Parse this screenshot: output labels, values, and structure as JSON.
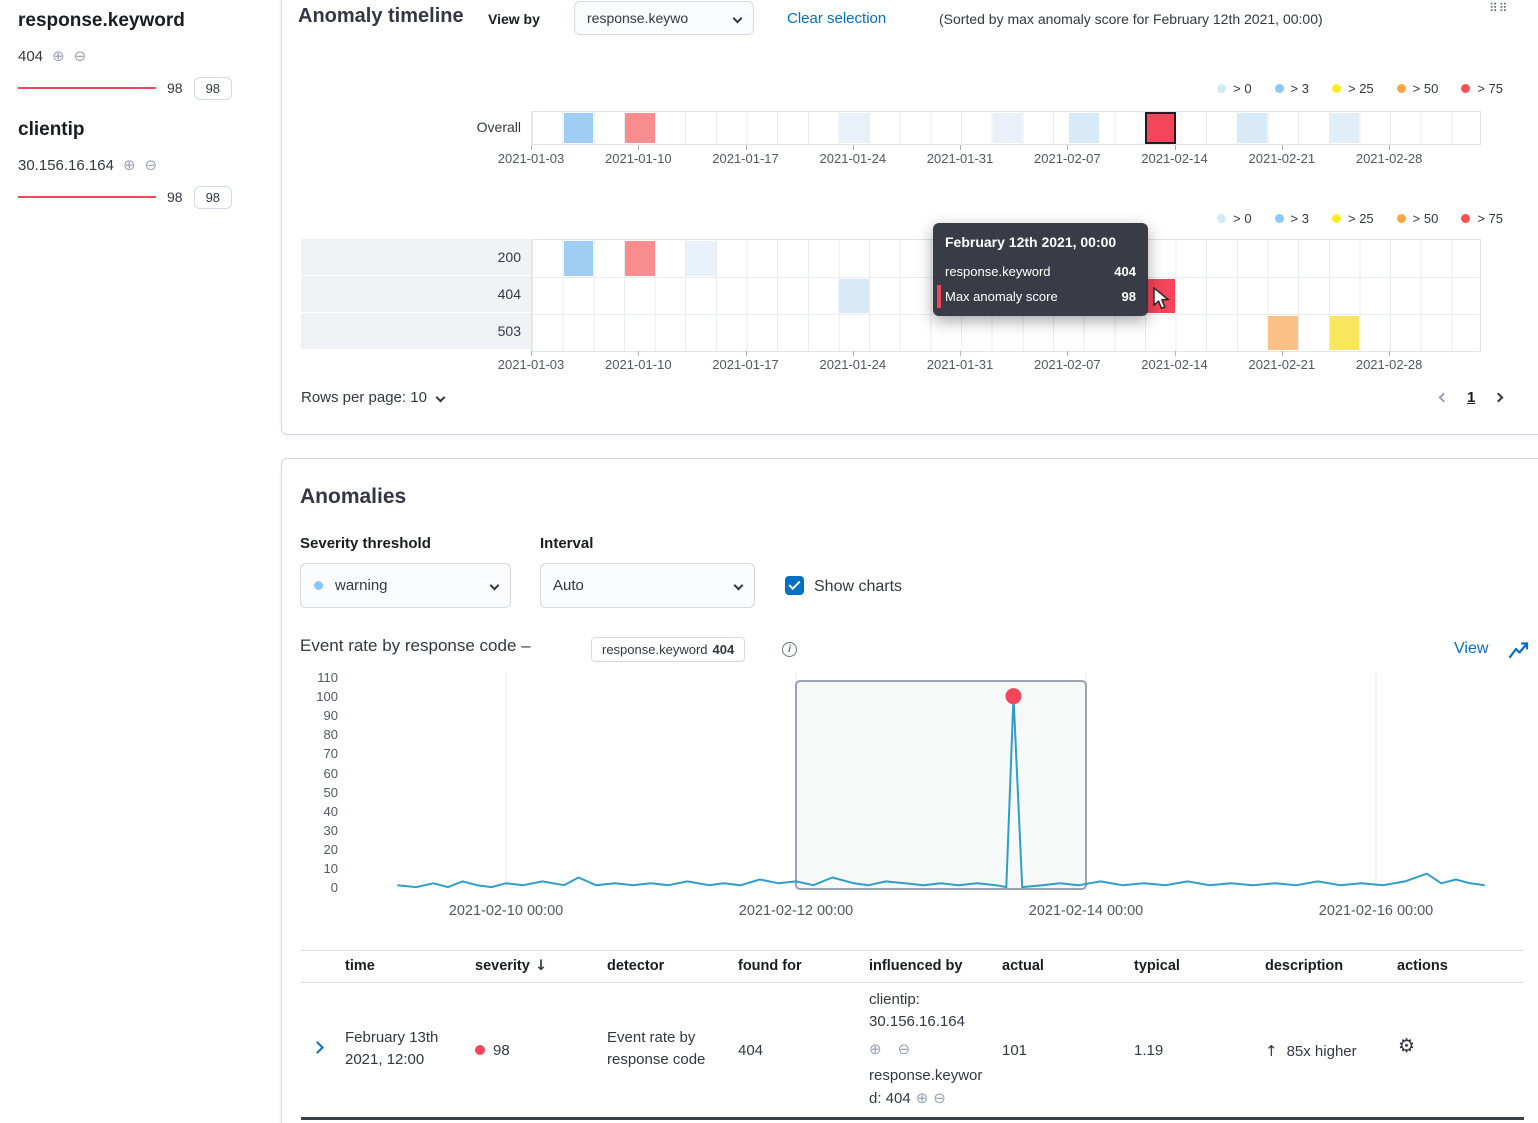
{
  "icons": {
    "plus": "⊕",
    "minus": "⊖",
    "gear": "⚙",
    "grab": "⠿⠿",
    "sort_desc": "↓",
    "arrow_up": "↑",
    "info": "i"
  },
  "sidebar": {
    "groups": [
      {
        "name": "response.keyword",
        "value": "404",
        "score": "98",
        "badge": "98",
        "bar_color": "#f4455a"
      },
      {
        "name": "clientip",
        "value": "30.156.16.164",
        "score": "98",
        "badge": "98",
        "bar_color": "#f4455a"
      }
    ]
  },
  "timeline": {
    "title": "Anomaly timeline",
    "view_by_label": "View by",
    "view_by_value": "response.keywo",
    "clear_selection_label": "Clear selection",
    "sorted_note": "(Sorted by max anomaly score for February 12th 2021, 00:00)",
    "legend": [
      {
        "label": "> 0",
        "color": "#d2e9f7"
      },
      {
        "label": "> 3",
        "color": "#8bc8fb"
      },
      {
        "label": "> 25",
        "color": "#fdec25"
      },
      {
        "label": "> 50",
        "color": "#fba740"
      },
      {
        "label": "> 75",
        "color": "#fe5050"
      }
    ],
    "axis_ticks": [
      {
        "day": 0,
        "label": "2021-01-03"
      },
      {
        "day": 7,
        "label": "2021-01-10"
      },
      {
        "day": 14,
        "label": "2021-01-17"
      },
      {
        "day": 21,
        "label": "2021-01-24"
      },
      {
        "day": 28,
        "label": "2021-01-31"
      },
      {
        "day": 35,
        "label": "2021-02-07"
      },
      {
        "day": 42,
        "label": "2021-02-14"
      },
      {
        "day": 49,
        "label": "2021-02-21"
      },
      {
        "day": 56,
        "label": "2021-02-28"
      }
    ],
    "overall": {
      "label": "Overall",
      "cells": [
        {
          "day": 2,
          "color": "#a0cdf3"
        },
        {
          "day": 6,
          "color": "#f98d8d"
        },
        {
          "day": 20,
          "color": "#e8f1fa"
        },
        {
          "day": 30,
          "color": "#e8f1fa"
        },
        {
          "day": 35,
          "color": "#d8e9f7"
        },
        {
          "day": 40,
          "color": "#f4455a",
          "selected": true
        },
        {
          "day": 46,
          "color": "#d8e9f7"
        },
        {
          "day": 52,
          "color": "#dfeef9"
        }
      ]
    },
    "lanes": [
      {
        "label": "200",
        "cells": [
          {
            "day": 2,
            "color": "#a0cdf3"
          },
          {
            "day": 6,
            "color": "#f98d8d"
          },
          {
            "day": 10,
            "color": "#e8f1fa"
          }
        ]
      },
      {
        "label": "404",
        "cells": [
          {
            "day": 20,
            "color": "#d8e9f7"
          },
          {
            "day": 40,
            "color": "#f4455a"
          }
        ]
      },
      {
        "label": "503",
        "cells": [
          {
            "day": 48,
            "color": "#fbc184"
          },
          {
            "day": 52,
            "color": "#f8e75c"
          }
        ]
      }
    ],
    "tooltip": {
      "title": "February 12th 2021, 00:00",
      "rows": [
        {
          "label": "response.keyword",
          "value": "404"
        },
        {
          "label": "Max anomaly score",
          "value": "98",
          "marked": true
        }
      ]
    },
    "rows_per_page_label": "Rows per page: 10",
    "page_number": "1"
  },
  "anomalies": {
    "title": "Anomalies",
    "severity_label": "Severity threshold",
    "severity_value": "warning",
    "severity_dot_color": "#8bc8fb",
    "interval_label": "Interval",
    "interval_value": "Auto",
    "show_charts_label": "Show charts",
    "show_charts_checked": true,
    "chart_heading": "Event rate by response code –",
    "chart_badge": {
      "field": "response.keyword",
      "value": "404"
    },
    "view_label": "View"
  },
  "chart_data": {
    "type": "line",
    "title": "Event rate by response code",
    "series_color": "#2f9fc7",
    "ylim": [
      0,
      110
    ],
    "y_ticks": [
      0,
      10,
      20,
      30,
      40,
      50,
      60,
      70,
      80,
      90,
      100,
      110
    ],
    "x_ticks": [
      {
        "day": 0,
        "label": "2021-02-10 00:00"
      },
      {
        "day": 2,
        "label": "2021-02-12 00:00"
      },
      {
        "day": 4,
        "label": "2021-02-14 00:00"
      },
      {
        "day": 6,
        "label": "2021-02-16 00:00"
      }
    ],
    "selection": {
      "from_day": 2,
      "to_day": 4
    },
    "anomaly_marker": {
      "day": 3.5,
      "value": 101,
      "color": "#f4455a"
    },
    "points": [
      [
        -0.75,
        2
      ],
      [
        -0.62,
        1
      ],
      [
        -0.5,
        3
      ],
      [
        -0.4,
        1
      ],
      [
        -0.3,
        4
      ],
      [
        -0.2,
        2
      ],
      [
        -0.1,
        1
      ],
      [
        0,
        3
      ],
      [
        0.12,
        2
      ],
      [
        0.25,
        4
      ],
      [
        0.4,
        2
      ],
      [
        0.5,
        6
      ],
      [
        0.62,
        2
      ],
      [
        0.75,
        3
      ],
      [
        0.88,
        2
      ],
      [
        1,
        3
      ],
      [
        1.12,
        2
      ],
      [
        1.25,
        4
      ],
      [
        1.4,
        2
      ],
      [
        1.5,
        3
      ],
      [
        1.62,
        2
      ],
      [
        1.75,
        5
      ],
      [
        1.88,
        3
      ],
      [
        2,
        4
      ],
      [
        2.12,
        2
      ],
      [
        2.25,
        6
      ],
      [
        2.4,
        3
      ],
      [
        2.5,
        2
      ],
      [
        2.62,
        4
      ],
      [
        2.75,
        3
      ],
      [
        2.88,
        2
      ],
      [
        3,
        3
      ],
      [
        3.12,
        2
      ],
      [
        3.25,
        3
      ],
      [
        3.38,
        2
      ],
      [
        3.45,
        1
      ],
      [
        3.5,
        101
      ],
      [
        3.56,
        1
      ],
      [
        3.7,
        2
      ],
      [
        3.82,
        3
      ],
      [
        3.95,
        2
      ],
      [
        4.1,
        4
      ],
      [
        4.25,
        2
      ],
      [
        4.4,
        3
      ],
      [
        4.55,
        2
      ],
      [
        4.7,
        4
      ],
      [
        4.85,
        2
      ],
      [
        5,
        3
      ],
      [
        5.15,
        2
      ],
      [
        5.3,
        3
      ],
      [
        5.45,
        2
      ],
      [
        5.6,
        4
      ],
      [
        5.75,
        2
      ],
      [
        5.9,
        3
      ],
      [
        6.05,
        2
      ],
      [
        6.2,
        4
      ],
      [
        6.35,
        8
      ],
      [
        6.45,
        3
      ],
      [
        6.55,
        5
      ],
      [
        6.65,
        3
      ],
      [
        6.75,
        2
      ]
    ]
  },
  "table": {
    "columns": [
      "time",
      "severity",
      "detector",
      "found for",
      "influenced by",
      "actual",
      "typical",
      "description",
      "actions"
    ],
    "sorted_column": "severity",
    "row": {
      "time": "February 13th 2021, 12:00",
      "severity": "98",
      "severity_color": "#f4455a",
      "detector": "Event rate by response code",
      "found_for": "404",
      "influencers": [
        "clientip: 30.156.16.164",
        "response.keyword: 404"
      ],
      "actual": "101",
      "typical": "1.19",
      "description": "85x higher"
    }
  }
}
